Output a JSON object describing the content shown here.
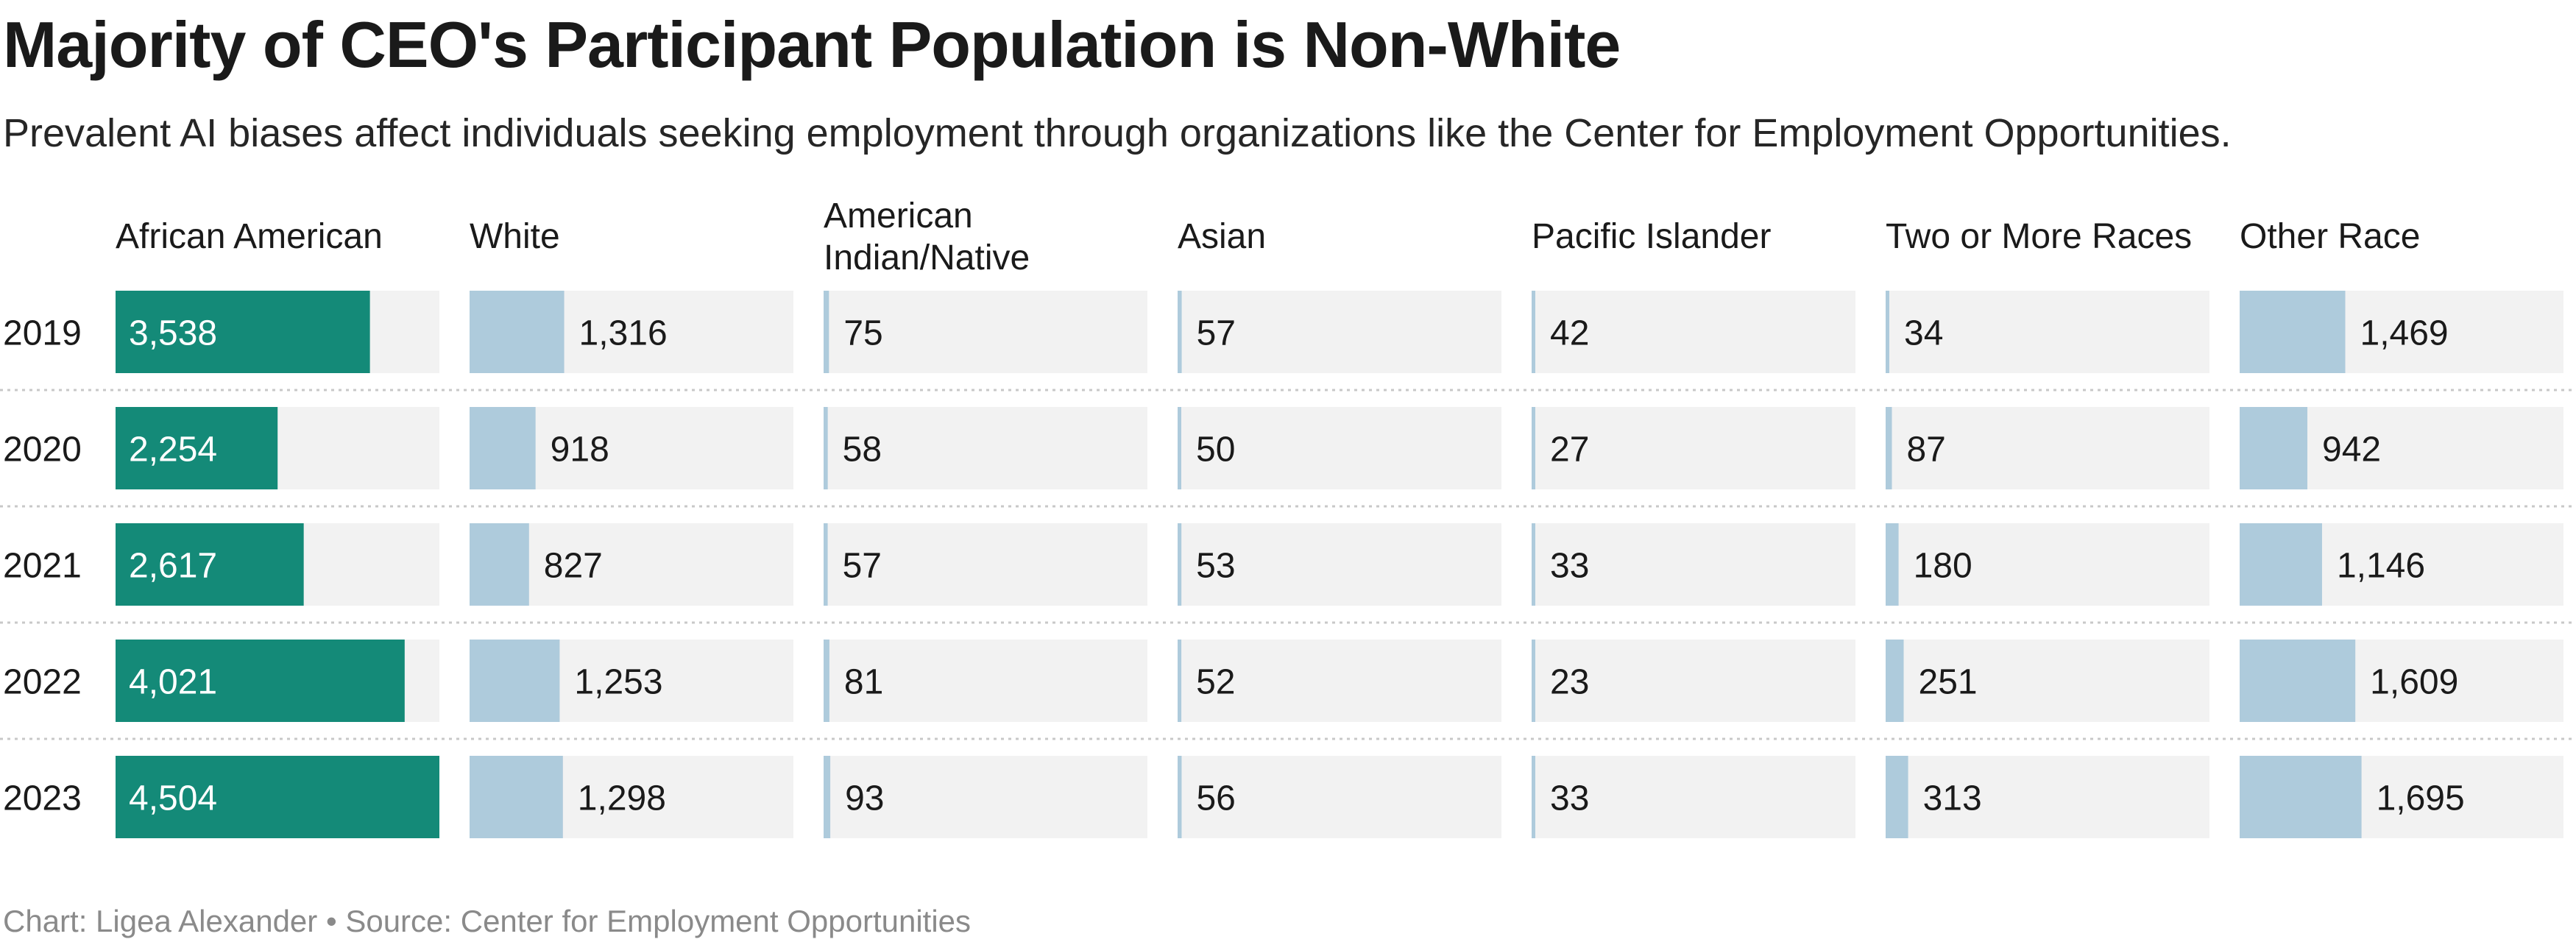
{
  "chart_data": {
    "type": "bar",
    "title": "Majority of CEO's Participant Population is Non-White",
    "subtitle": "Prevalent AI biases affect individuals seeking employment through organizations like the Center for Employment Opportunities.",
    "footer": "Chart: Ligea Alexander • Source: Center for Employment Opportunities",
    "categories": [
      "2019",
      "2020",
      "2021",
      "2022",
      "2023"
    ],
    "max_value": 4504,
    "series": [
      {
        "name": "African American",
        "name_lines": [
          "African American"
        ],
        "values": [
          3538,
          2254,
          2617,
          4021,
          4504
        ],
        "color": "#148a78"
      },
      {
        "name": "White",
        "name_lines": [
          "White"
        ],
        "values": [
          1316,
          918,
          827,
          1253,
          1298
        ],
        "color": "#aecbdc"
      },
      {
        "name": "American Indian/Native",
        "name_lines": [
          "American",
          "Indian/Native"
        ],
        "values": [
          75,
          58,
          57,
          81,
          93
        ],
        "color": "#aecbdc"
      },
      {
        "name": "Asian",
        "name_lines": [
          "Asian"
        ],
        "values": [
          57,
          50,
          53,
          52,
          56
        ],
        "color": "#aecbdc"
      },
      {
        "name": "Pacific Islander",
        "name_lines": [
          "Pacific Islander"
        ],
        "values": [
          42,
          27,
          33,
          23,
          33
        ],
        "color": "#aecbdc"
      },
      {
        "name": "Two or More Races",
        "name_lines": [
          "Two or More Races"
        ],
        "values": [
          34,
          87,
          180,
          251,
          313
        ],
        "color": "#aecbdc"
      },
      {
        "name": "Other Race",
        "name_lines": [
          "Other Race"
        ],
        "values": [
          1469,
          942,
          1146,
          1609,
          1695
        ],
        "color": "#aecbdc"
      }
    ],
    "labels": [
      [
        "3,538",
        "1,316",
        "75",
        "57",
        "42",
        "34",
        "1,469"
      ],
      [
        "2,254",
        "918",
        "58",
        "50",
        "27",
        "87",
        "942"
      ],
      [
        "2,617",
        "827",
        "57",
        "53",
        "33",
        "180",
        "1,146"
      ],
      [
        "4,021",
        "1,253",
        "81",
        "52",
        "23",
        "251",
        "1,609"
      ],
      [
        "4,504",
        "1,298",
        "93",
        "56",
        "33",
        "313",
        "1,695"
      ]
    ],
    "track_color": "#f2f2f2",
    "label_dark_color": "#1a1a1a",
    "label_light_color": "#ffffff",
    "separator_color": "#c8c8c8"
  }
}
